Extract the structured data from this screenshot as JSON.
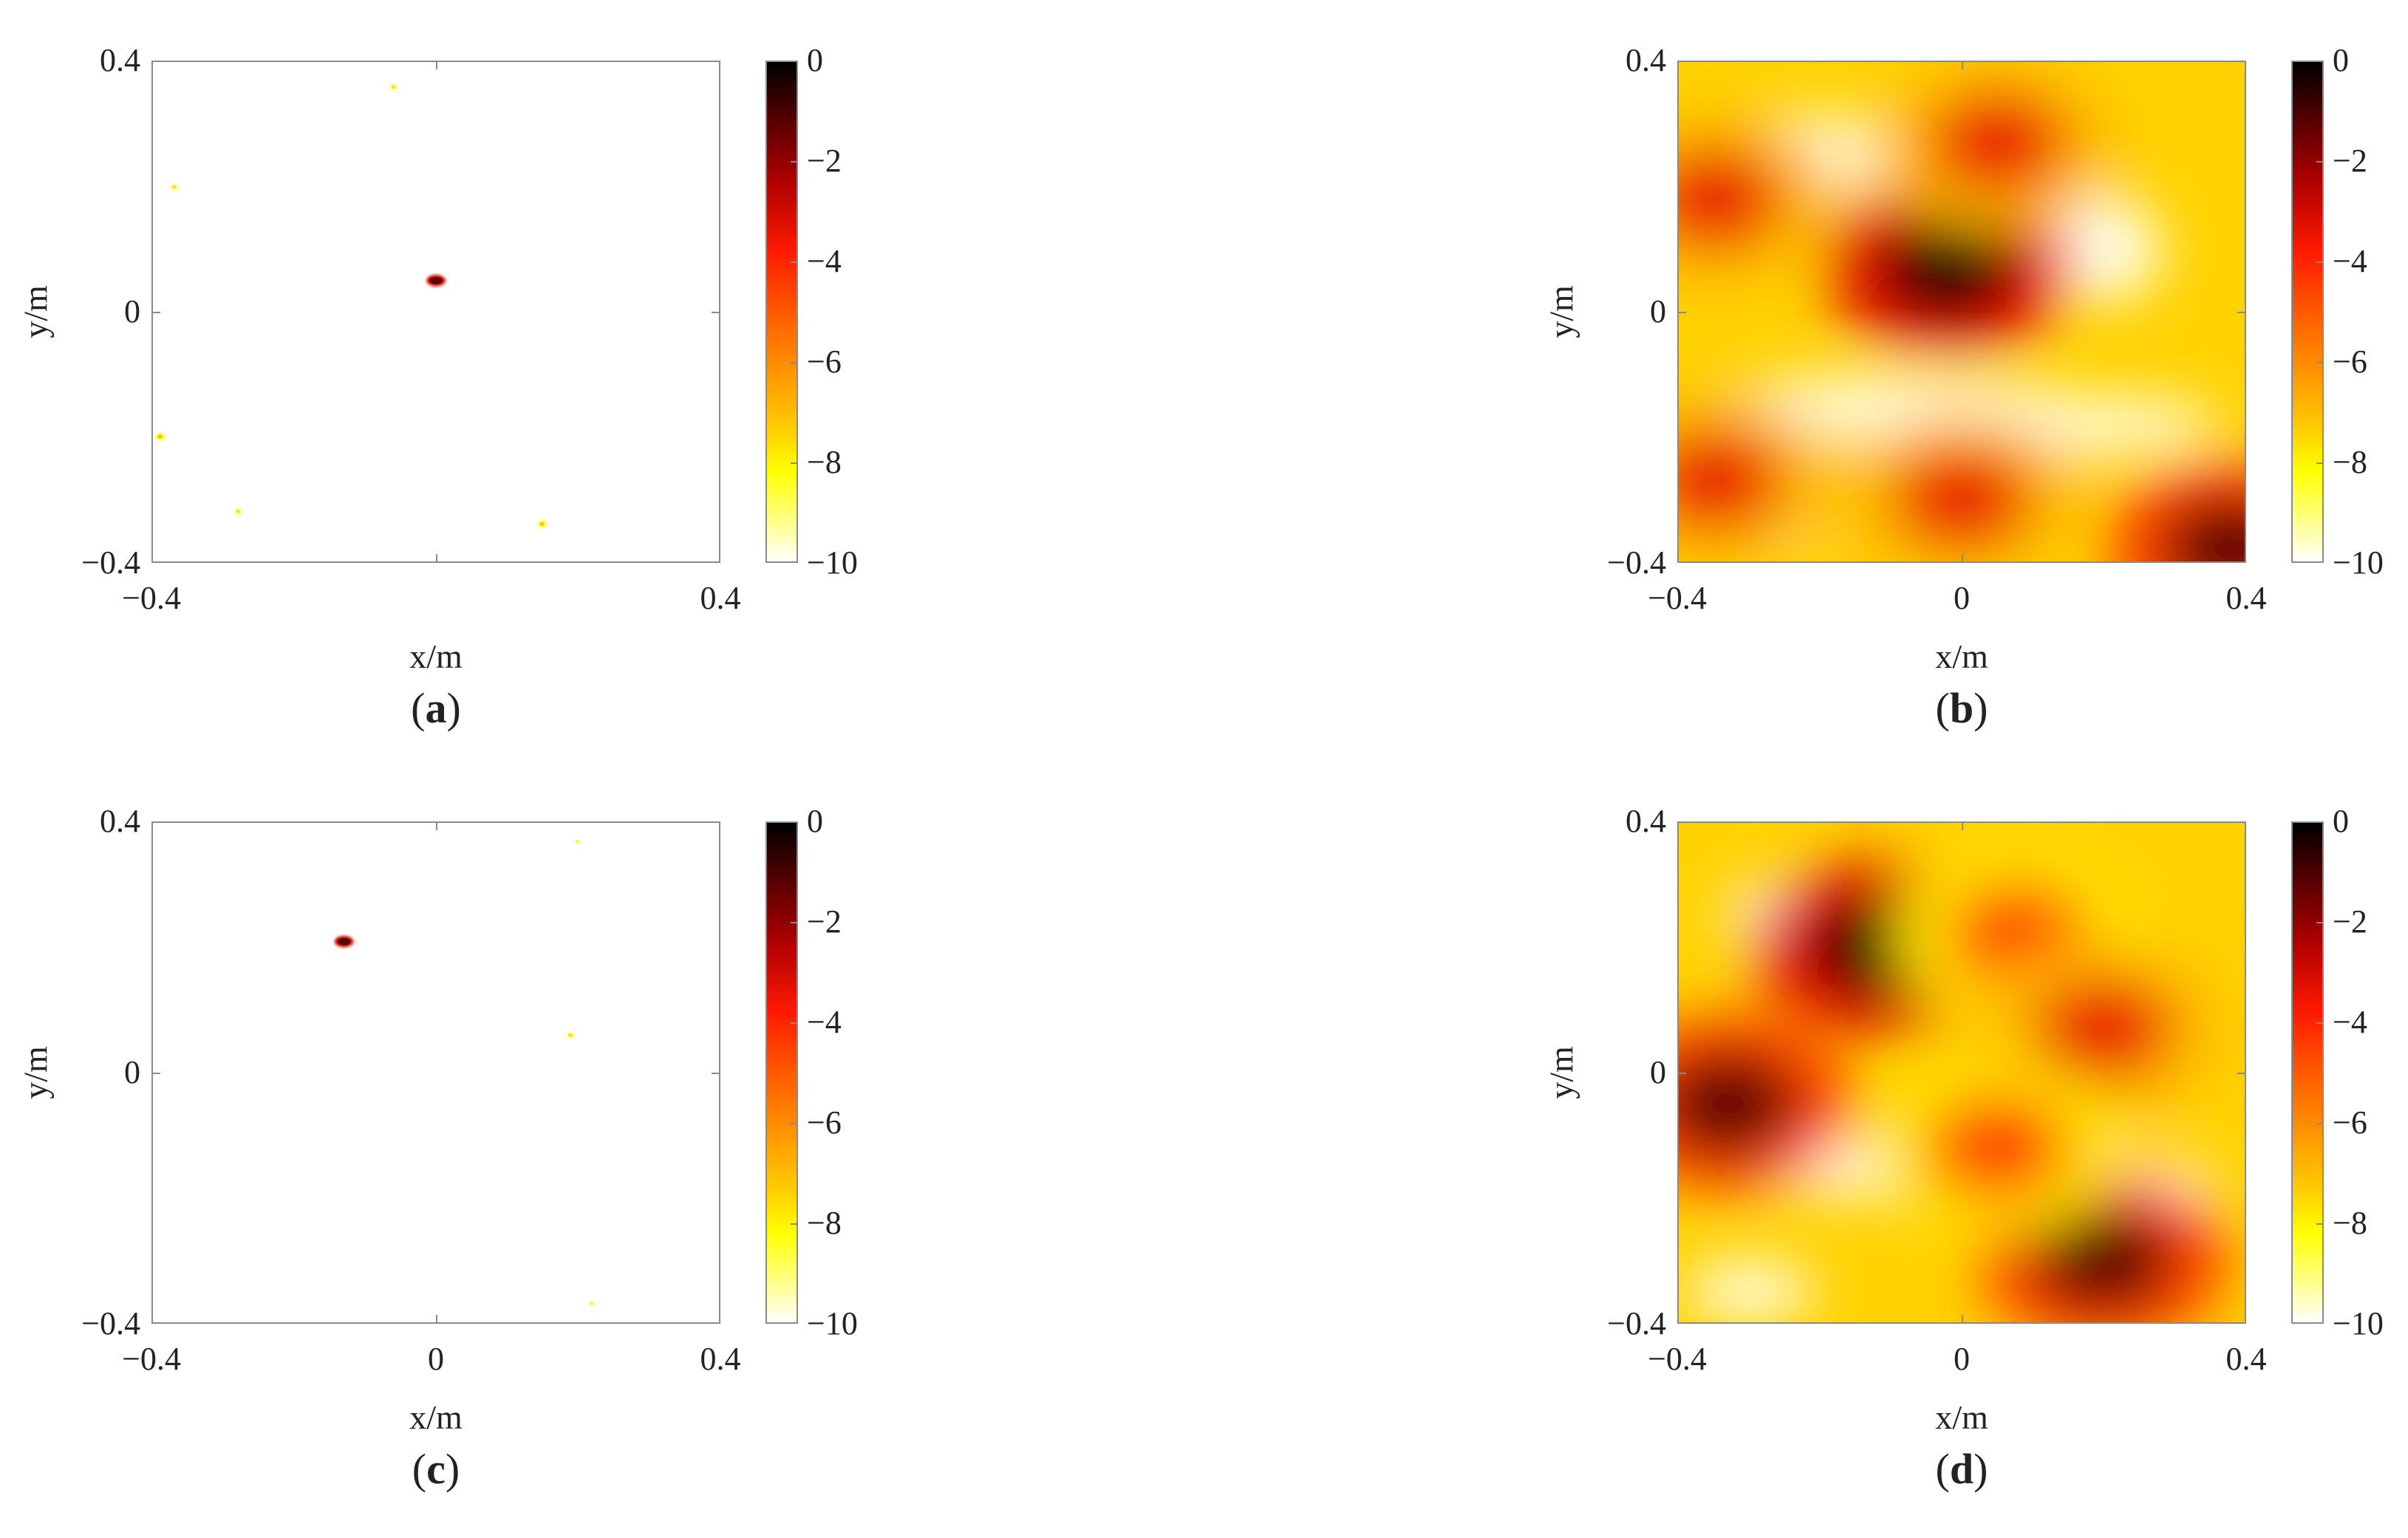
{
  "chart_data": [
    {
      "type": "heatmap",
      "panel_label": "a",
      "xlabel": "x/m",
      "ylabel": "y/m",
      "xlim": [
        -0.4,
        0.4
      ],
      "ylim": [
        -0.4,
        0.4
      ],
      "x_ticks": [
        "−0.4",
        "0.4"
      ],
      "y_ticks": [
        "0.4",
        "0",
        "−0.4"
      ],
      "colorbar": {
        "range": [
          -10,
          0
        ],
        "ticks": [
          "0",
          "−2",
          "−4",
          "−6",
          "−8",
          "−10"
        ]
      },
      "colormap": "hot",
      "peaks": [
        {
          "x": 0.0,
          "y": 0.05,
          "level": -1
        },
        {
          "x": -0.06,
          "y": 0.36,
          "level": -7
        },
        {
          "x": -0.37,
          "y": 0.2,
          "level": -7
        },
        {
          "x": -0.39,
          "y": -0.2,
          "level": -6
        },
        {
          "x": -0.28,
          "y": -0.32,
          "level": -7
        },
        {
          "x": 0.15,
          "y": -0.34,
          "level": -6
        }
      ]
    },
    {
      "type": "heatmap",
      "panel_label": "b",
      "xlabel": "x/m",
      "ylabel": "y/m",
      "xlim": [
        -0.4,
        0.4
      ],
      "ylim": [
        -0.4,
        0.4
      ],
      "x_ticks": [
        "−0.4",
        "0",
        "0.4"
      ],
      "y_ticks": [
        "0.4",
        "0",
        "−0.4"
      ],
      "colorbar": {
        "range": [
          -10,
          0
        ],
        "ticks": [
          "0",
          "−2",
          "−4",
          "−6",
          "−8",
          "−10"
        ]
      },
      "colormap": "hot",
      "peaks": [
        {
          "x": -0.02,
          "y": 0.07,
          "level": 0
        },
        {
          "x": 0.05,
          "y": 0.27,
          "level": -3
        },
        {
          "x": -0.35,
          "y": 0.18,
          "level": -3
        },
        {
          "x": -0.35,
          "y": -0.27,
          "level": -3
        },
        {
          "x": 0.0,
          "y": -0.3,
          "level": -3
        },
        {
          "x": 0.38,
          "y": -0.38,
          "level": -1
        }
      ]
    },
    {
      "type": "heatmap",
      "panel_label": "c",
      "xlabel": "x/m",
      "ylabel": "y/m",
      "xlim": [
        -0.4,
        0.4
      ],
      "ylim": [
        -0.4,
        0.4
      ],
      "x_ticks": [
        "−0.4",
        "0",
        "0.4"
      ],
      "y_ticks": [
        "0.4",
        "0",
        "−0.4"
      ],
      "colorbar": {
        "range": [
          -10,
          0
        ],
        "ticks": [
          "0",
          "−2",
          "−4",
          "−6",
          "−8",
          "−10"
        ]
      },
      "colormap": "hot",
      "peaks": [
        {
          "x": -0.13,
          "y": 0.21,
          "level": -1
        },
        {
          "x": 0.2,
          "y": 0.37,
          "level": -8
        },
        {
          "x": 0.19,
          "y": 0.06,
          "level": -7
        },
        {
          "x": 0.22,
          "y": -0.37,
          "level": -8
        }
      ]
    },
    {
      "type": "heatmap",
      "panel_label": "d",
      "xlabel": "x/m",
      "ylabel": "y/m",
      "xlim": [
        -0.4,
        0.4
      ],
      "ylim": [
        -0.4,
        0.4
      ],
      "x_ticks": [
        "−0.4",
        "0",
        "0.4"
      ],
      "y_ticks": [
        "0.4",
        "0",
        "−0.4"
      ],
      "colorbar": {
        "range": [
          -10,
          0
        ],
        "ticks": [
          "0",
          "−2",
          "−4",
          "−6",
          "−8",
          "−10"
        ]
      },
      "colormap": "hot",
      "peaks": [
        {
          "x": -0.12,
          "y": 0.2,
          "level": 0
        },
        {
          "x": -0.33,
          "y": -0.05,
          "level": -1
        },
        {
          "x": 0.2,
          "y": -0.3,
          "level": -1
        },
        {
          "x": 0.08,
          "y": 0.22,
          "level": -4
        },
        {
          "x": 0.2,
          "y": 0.07,
          "level": -3
        },
        {
          "x": 0.05,
          "y": -0.12,
          "level": -4
        }
      ]
    }
  ]
}
